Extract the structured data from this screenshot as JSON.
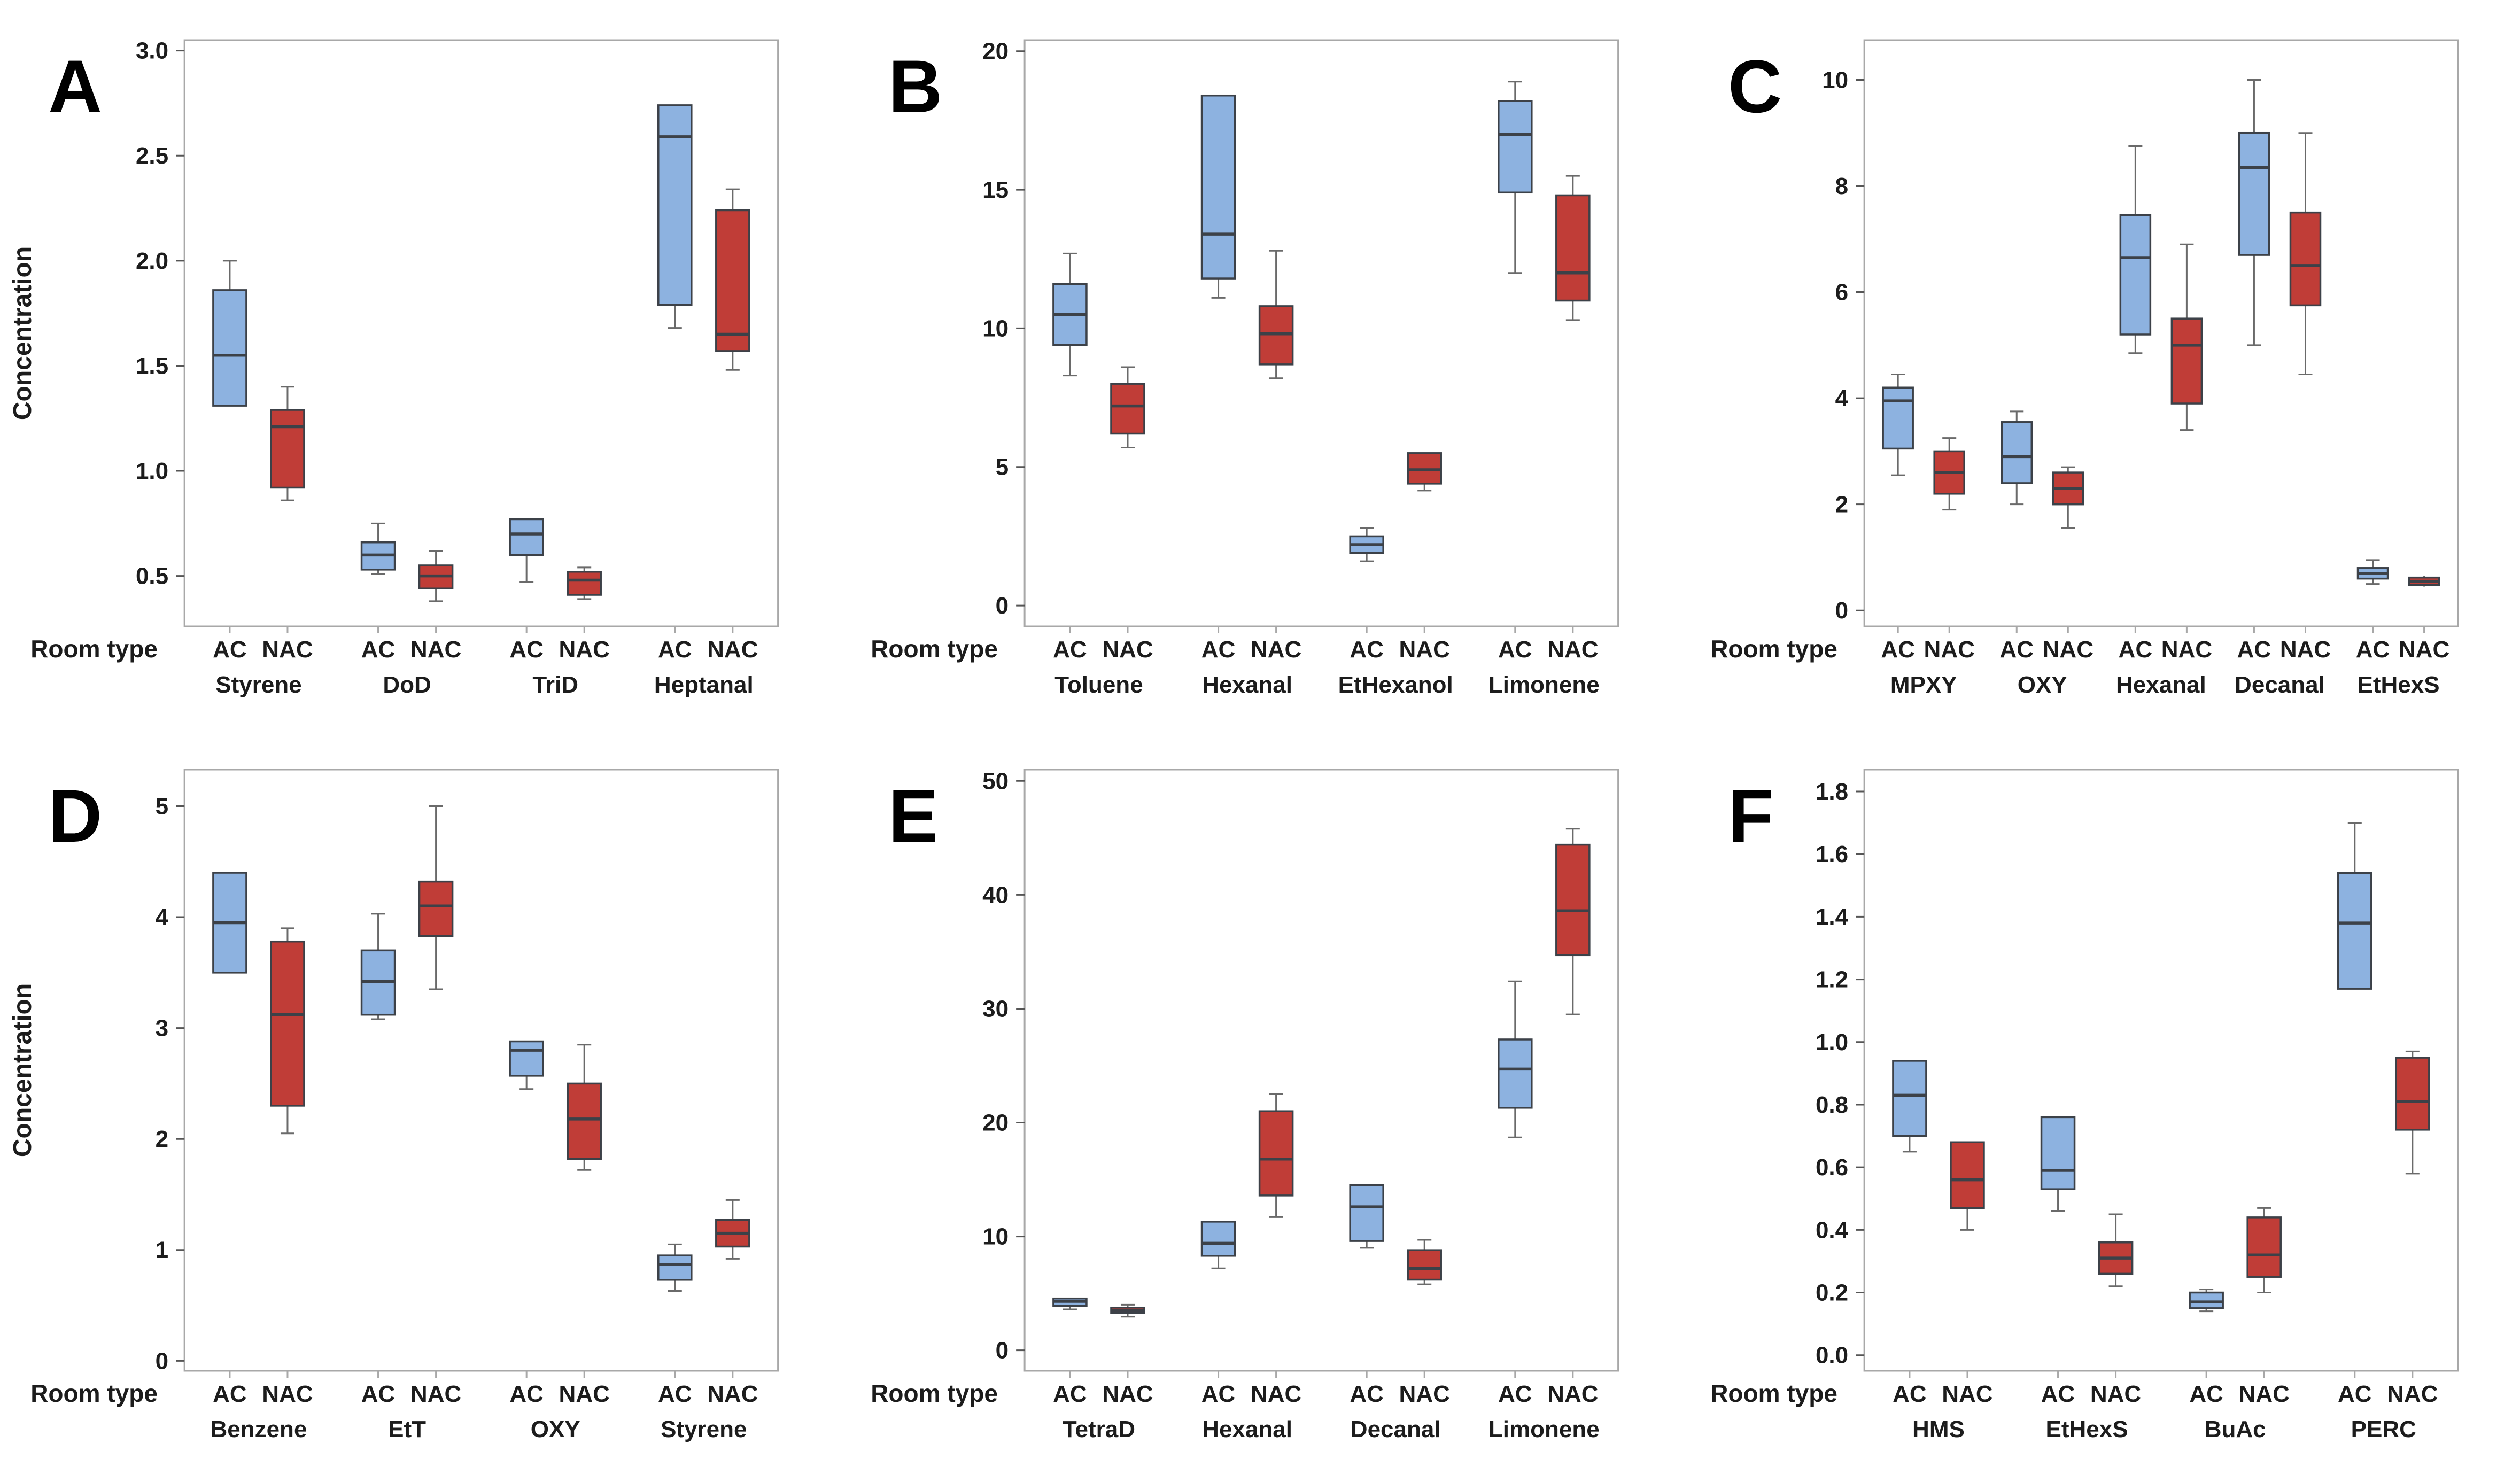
{
  "figure": {
    "ylabel": "Concentration",
    "xlabel": "Room type",
    "series": [
      "AC",
      "NAC"
    ],
    "colors": {
      "ac_fill": "#8db2e0",
      "nac_fill": "#c03d37",
      "box_stroke": "#3c4148",
      "whisker": "#6a6a6a",
      "frame": "#a8a8a8",
      "tick": "#555555",
      "text": "#1c1c1c",
      "background": "#ffffff"
    }
  },
  "chart_data": [
    {
      "type": "boxplot",
      "letter": "A",
      "show_ylabel": true,
      "ylim": [
        0.26,
        3.05
      ],
      "yticks": [
        "0.5",
        "1.0",
        "1.5",
        "2.0",
        "2.5",
        "3.0"
      ],
      "groups": [
        {
          "label": "Styrene",
          "AC": {
            "low": 1.31,
            "q1": 1.31,
            "median": 1.55,
            "q3": 1.86,
            "high": 2.0
          },
          "NAC": {
            "low": 0.86,
            "q1": 0.92,
            "median": 1.21,
            "q3": 1.29,
            "high": 1.4
          }
        },
        {
          "label": "DoD",
          "AC": {
            "low": 0.51,
            "q1": 0.53,
            "median": 0.6,
            "q3": 0.66,
            "high": 0.75
          },
          "NAC": {
            "low": 0.38,
            "q1": 0.44,
            "median": 0.5,
            "q3": 0.55,
            "high": 0.62
          }
        },
        {
          "label": "TriD",
          "AC": {
            "low": 0.47,
            "q1": 0.6,
            "median": 0.7,
            "q3": 0.77,
            "high": 0.77
          },
          "NAC": {
            "low": 0.39,
            "q1": 0.41,
            "median": 0.48,
            "q3": 0.52,
            "high": 0.54
          }
        },
        {
          "label": "Heptanal",
          "AC": {
            "low": 1.68,
            "q1": 1.79,
            "median": 2.59,
            "q3": 2.74,
            "high": 2.74
          },
          "NAC": {
            "low": 1.48,
            "q1": 1.57,
            "median": 1.65,
            "q3": 2.24,
            "high": 2.34
          }
        }
      ]
    },
    {
      "type": "boxplot",
      "letter": "B",
      "show_ylabel": false,
      "ylim": [
        -0.75,
        20.4
      ],
      "yticks": [
        "0",
        "5",
        "10",
        "15",
        "20"
      ],
      "groups": [
        {
          "label": "Toluene",
          "AC": {
            "low": 8.3,
            "q1": 9.4,
            "median": 10.5,
            "q3": 11.6,
            "high": 12.7
          },
          "NAC": {
            "low": 5.7,
            "q1": 6.2,
            "median": 7.2,
            "q3": 8.0,
            "high": 8.6
          }
        },
        {
          "label": "Hexanal",
          "AC": {
            "low": 11.1,
            "q1": 11.8,
            "median": 13.4,
            "q3": 18.4,
            "high": 18.4
          },
          "NAC": {
            "low": 8.2,
            "q1": 8.7,
            "median": 9.8,
            "q3": 10.8,
            "high": 12.8
          }
        },
        {
          "label": "EtHexanol",
          "AC": {
            "low": 1.6,
            "q1": 1.9,
            "median": 2.2,
            "q3": 2.5,
            "high": 2.8
          },
          "NAC": {
            "low": 4.15,
            "q1": 4.4,
            "median": 4.9,
            "q3": 5.5,
            "high": 5.5
          }
        },
        {
          "label": "Limonene",
          "AC": {
            "low": 12.0,
            "q1": 14.9,
            "median": 17.0,
            "q3": 18.2,
            "high": 18.9
          },
          "NAC": {
            "low": 10.3,
            "q1": 11.0,
            "median": 12.0,
            "q3": 14.8,
            "high": 15.5
          }
        }
      ]
    },
    {
      "type": "boxplot",
      "letter": "C",
      "show_ylabel": false,
      "ylim": [
        -0.3,
        10.75
      ],
      "yticks": [
        "0",
        "2",
        "4",
        "6",
        "8",
        "10"
      ],
      "groups": [
        {
          "label": "MPXY",
          "AC": {
            "low": 2.55,
            "q1": 3.05,
            "median": 3.95,
            "q3": 4.2,
            "high": 4.45
          },
          "NAC": {
            "low": 1.9,
            "q1": 2.2,
            "median": 2.6,
            "q3": 3.0,
            "high": 3.25
          }
        },
        {
          "label": "OXY",
          "AC": {
            "low": 2.0,
            "q1": 2.4,
            "median": 2.9,
            "q3": 3.55,
            "high": 3.75
          },
          "NAC": {
            "low": 1.55,
            "q1": 2.0,
            "median": 2.3,
            "q3": 2.6,
            "high": 2.7
          }
        },
        {
          "label": "Hexanal",
          "AC": {
            "low": 4.85,
            "q1": 5.2,
            "median": 6.65,
            "q3": 7.45,
            "high": 8.75
          },
          "NAC": {
            "low": 3.4,
            "q1": 3.9,
            "median": 5.0,
            "q3": 5.5,
            "high": 6.9
          }
        },
        {
          "label": "Decanal",
          "AC": {
            "low": 5.0,
            "q1": 6.7,
            "median": 8.35,
            "q3": 9.0,
            "high": 10.0
          },
          "NAC": {
            "low": 4.45,
            "q1": 5.75,
            "median": 6.5,
            "q3": 7.5,
            "high": 9.0
          }
        },
        {
          "label": "EtHexS",
          "AC": {
            "low": 0.5,
            "q1": 0.6,
            "median": 0.7,
            "q3": 0.8,
            "high": 0.95
          },
          "NAC": {
            "low": 0.45,
            "q1": 0.48,
            "median": 0.55,
            "q3": 0.62,
            "high": 0.65
          }
        }
      ]
    },
    {
      "type": "boxplot",
      "letter": "D",
      "show_ylabel": true,
      "ylim": [
        -0.09,
        5.33
      ],
      "yticks": [
        "0",
        "1",
        "2",
        "3",
        "4",
        "5"
      ],
      "groups": [
        {
          "label": "Benzene",
          "AC": {
            "low": 3.5,
            "q1": 3.5,
            "median": 3.95,
            "q3": 4.4,
            "high": 4.4
          },
          "NAC": {
            "low": 2.05,
            "q1": 2.3,
            "median": 3.12,
            "q3": 3.78,
            "high": 3.9
          }
        },
        {
          "label": "EtT",
          "AC": {
            "low": 3.08,
            "q1": 3.12,
            "median": 3.42,
            "q3": 3.7,
            "high": 4.03
          },
          "NAC": {
            "low": 3.35,
            "q1": 3.83,
            "median": 4.1,
            "q3": 4.32,
            "high": 5.0
          }
        },
        {
          "label": "OXY",
          "AC": {
            "low": 2.45,
            "q1": 2.57,
            "median": 2.8,
            "q3": 2.88,
            "high": 2.88
          },
          "NAC": {
            "low": 1.72,
            "q1": 1.82,
            "median": 2.18,
            "q3": 2.5,
            "high": 2.85
          }
        },
        {
          "label": "Styrene",
          "AC": {
            "low": 0.63,
            "q1": 0.73,
            "median": 0.87,
            "q3": 0.95,
            "high": 1.05
          },
          "NAC": {
            "low": 0.92,
            "q1": 1.03,
            "median": 1.15,
            "q3": 1.27,
            "high": 1.45
          }
        }
      ]
    },
    {
      "type": "boxplot",
      "letter": "E",
      "show_ylabel": false,
      "ylim": [
        -1.8,
        51.0
      ],
      "yticks": [
        "0",
        "10",
        "20",
        "30",
        "40",
        "50"
      ],
      "groups": [
        {
          "label": "TetraD",
          "AC": {
            "low": 3.6,
            "q1": 3.9,
            "median": 4.3,
            "q3": 4.55,
            "high": 4.55
          },
          "NAC": {
            "low": 2.95,
            "q1": 3.3,
            "median": 3.5,
            "q3": 3.75,
            "high": 4.0
          }
        },
        {
          "label": "Hexanal",
          "AC": {
            "low": 7.2,
            "q1": 8.3,
            "median": 9.4,
            "q3": 11.3,
            "high": 11.3
          },
          "NAC": {
            "low": 11.7,
            "q1": 13.6,
            "median": 16.8,
            "q3": 21.0,
            "high": 22.5
          }
        },
        {
          "label": "Decanal",
          "AC": {
            "low": 9.0,
            "q1": 9.6,
            "median": 12.6,
            "q3": 14.5,
            "high": 14.5
          },
          "NAC": {
            "low": 5.8,
            "q1": 6.2,
            "median": 7.2,
            "q3": 8.8,
            "high": 9.7
          }
        },
        {
          "label": "Limonene",
          "AC": {
            "low": 18.7,
            "q1": 21.3,
            "median": 24.7,
            "q3": 27.3,
            "high": 32.4
          },
          "NAC": {
            "low": 29.5,
            "q1": 34.7,
            "median": 38.6,
            "q3": 44.4,
            "high": 45.8
          }
        }
      ]
    },
    {
      "type": "boxplot",
      "letter": "F",
      "show_ylabel": false,
      "ylim": [
        -0.05,
        1.87
      ],
      "yticks": [
        "0.0",
        "0.2",
        "0.4",
        "0.6",
        "0.8",
        "1.0",
        "1.2",
        "1.4",
        "1.6",
        "1.8"
      ],
      "groups": [
        {
          "label": "HMS",
          "AC": {
            "low": 0.65,
            "q1": 0.7,
            "median": 0.83,
            "q3": 0.94,
            "high": 0.94
          },
          "NAC": {
            "low": 0.4,
            "q1": 0.47,
            "median": 0.56,
            "q3": 0.68,
            "high": 0.68
          }
        },
        {
          "label": "EtHexS",
          "AC": {
            "low": 0.46,
            "q1": 0.53,
            "median": 0.59,
            "q3": 0.76,
            "high": 0.76
          },
          "NAC": {
            "low": 0.22,
            "q1": 0.26,
            "median": 0.31,
            "q3": 0.36,
            "high": 0.45
          }
        },
        {
          "label": "BuAc",
          "AC": {
            "low": 0.14,
            "q1": 0.15,
            "median": 0.17,
            "q3": 0.2,
            "high": 0.21
          },
          "NAC": {
            "low": 0.2,
            "q1": 0.25,
            "median": 0.32,
            "q3": 0.44,
            "high": 0.47
          }
        },
        {
          "label": "PERC",
          "AC": {
            "low": 1.17,
            "q1": 1.17,
            "median": 1.38,
            "q3": 1.54,
            "high": 1.7
          },
          "NAC": {
            "low": 0.58,
            "q1": 0.72,
            "median": 0.81,
            "q3": 0.95,
            "high": 0.97
          }
        }
      ]
    }
  ]
}
